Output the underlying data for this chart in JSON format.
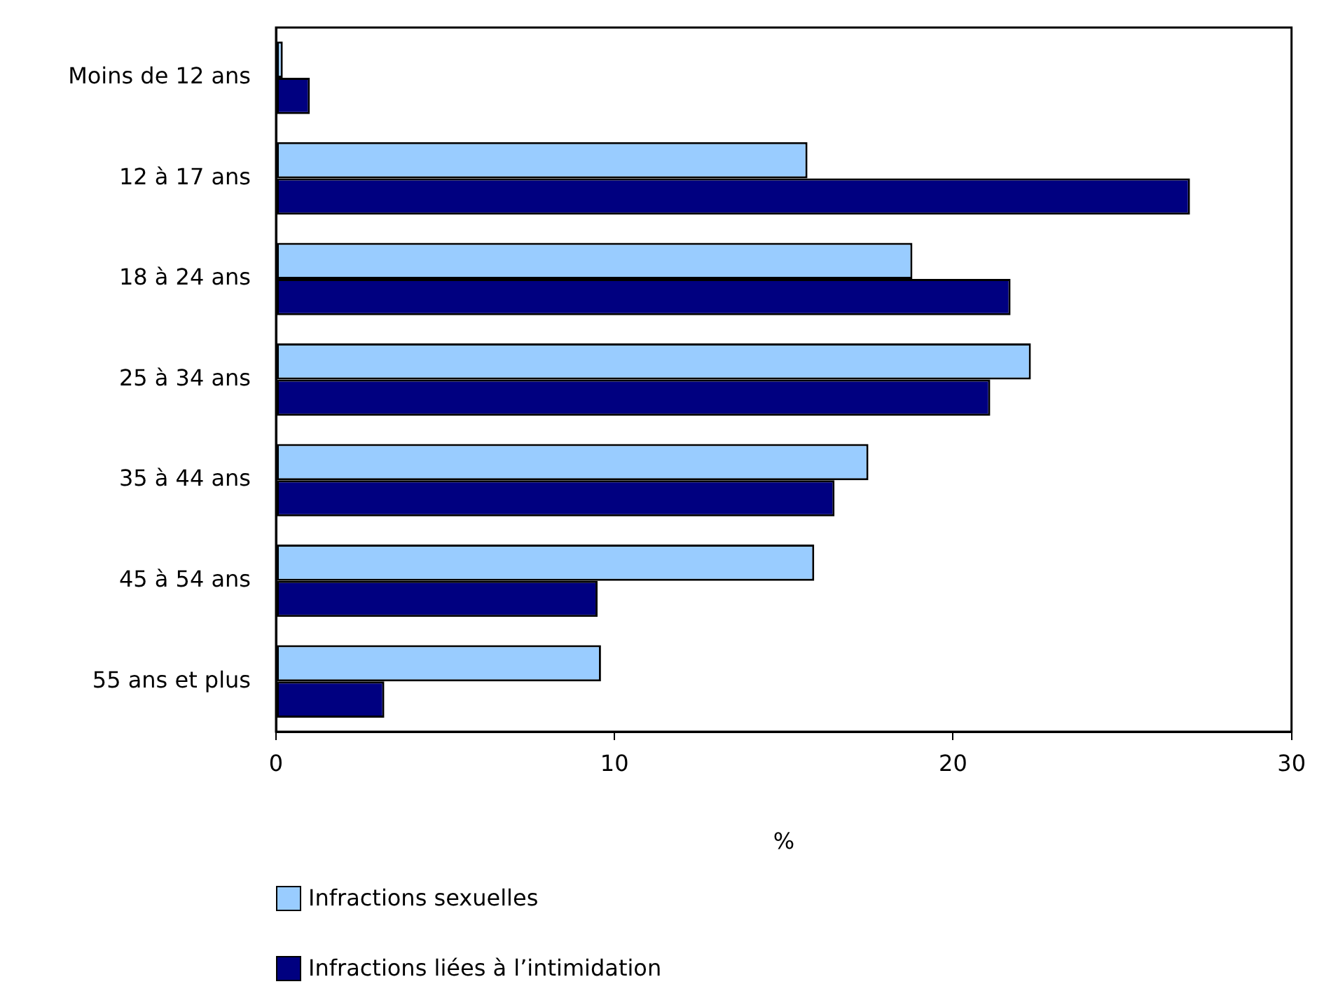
{
  "chart_data": {
    "type": "bar",
    "orientation": "horizontal",
    "xlabel": "%",
    "categories": [
      "Moins de 12 ans",
      "12 à 17 ans",
      "18 à 24 ans",
      "25 à 34 ans",
      "35 à 44 ans",
      "45 à 54 ans",
      "55 ans et plus"
    ],
    "series": [
      {
        "name": "Infractions sexuelles",
        "color": "#99ccff",
        "values": [
          0.2,
          15.7,
          18.8,
          22.3,
          17.5,
          15.9,
          9.6
        ]
      },
      {
        "name": "Infractions liées à l’intimidation",
        "color": "#000080",
        "values": [
          1.0,
          27.0,
          21.7,
          21.1,
          16.5,
          9.5,
          3.2
        ]
      }
    ],
    "xlim": [
      0,
      30
    ],
    "xticks": [
      0,
      10,
      20,
      30
    ],
    "legend": "bottom"
  }
}
